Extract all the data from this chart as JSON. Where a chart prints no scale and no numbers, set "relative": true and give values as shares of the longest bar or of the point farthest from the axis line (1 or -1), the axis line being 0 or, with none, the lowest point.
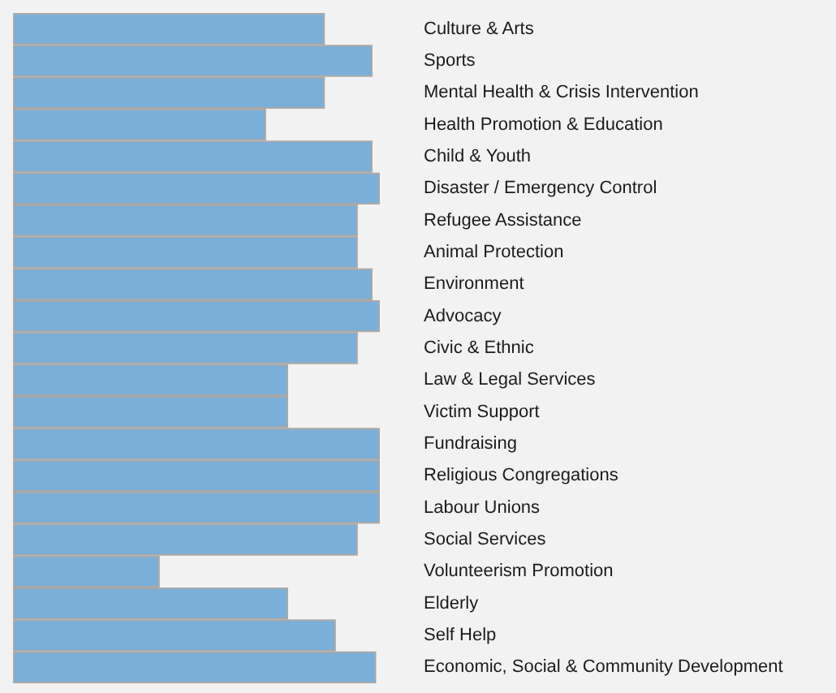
{
  "chart_data": {
    "type": "bar",
    "orientation": "horizontal",
    "relative": true,
    "categories": [
      "Culture & Arts",
      "Sports",
      "Mental Health & Crisis Intervention",
      "Health Promotion & Education",
      "Child & Youth",
      "Disaster / Emergency Control",
      "Refugee Assistance",
      "Animal Protection",
      "Environment",
      "Advocacy",
      "Civic & Ethnic",
      "Law & Legal Services",
      "Victim Support",
      "Fundraising",
      "Religious Congregations",
      "Labour Unions",
      "Social Services",
      "Volunteerism Promotion",
      "Elderly",
      "Self Help",
      "Economic, Social & Community Development"
    ],
    "values": [
      0.85,
      0.98,
      0.85,
      0.69,
      0.98,
      1,
      0.94,
      0.94,
      0.98,
      1,
      0.94,
      0.75,
      0.75,
      1,
      1,
      1,
      0.94,
      0.4,
      0.75,
      0.88,
      0.99
    ],
    "color": "#7bafd9"
  }
}
